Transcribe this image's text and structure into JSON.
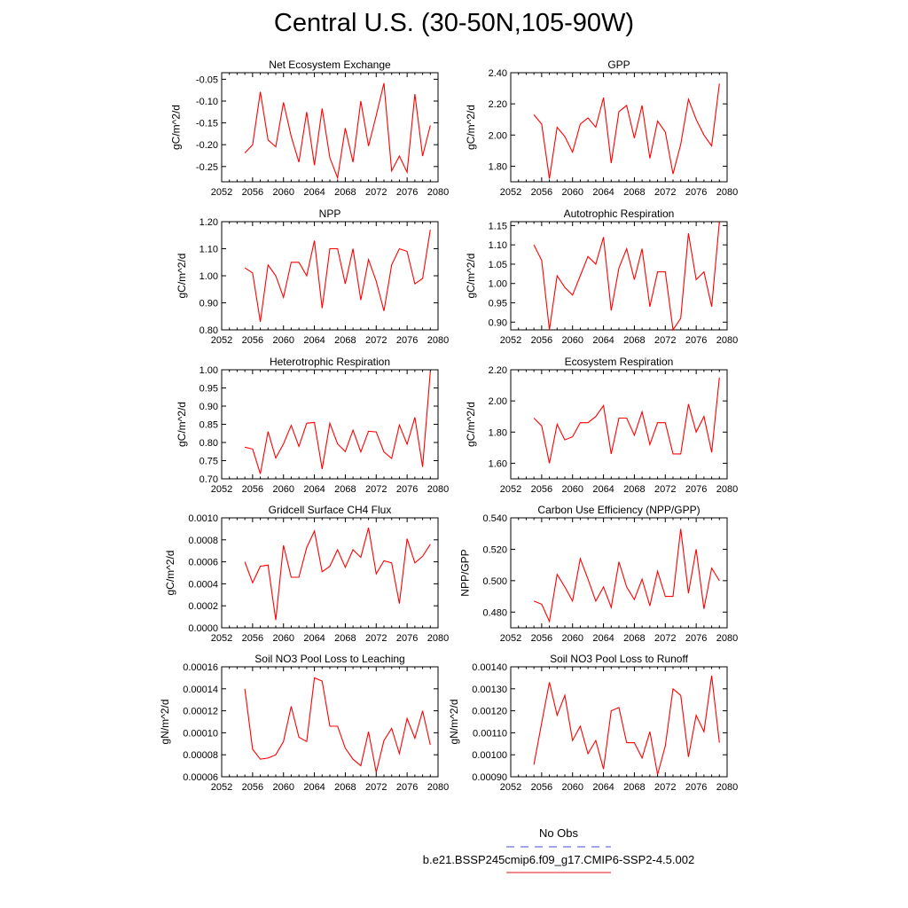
{
  "title": "Central U.S. (30-50N,105-90W)",
  "legend": [
    {
      "label": "No Obs",
      "color": "#4b4bd6",
      "style": "dashed"
    },
    {
      "label": "b.e21.BSSP245cmip6.f09_g17.CMIP6-SSP2-4.5.002",
      "color": "#e01818",
      "style": "solid"
    }
  ],
  "line_color": "#ff0000",
  "chart_data": [
    {
      "type": "line",
      "title": "Net Ecosystem Exchange",
      "ylabel": "gC/m^2/d",
      "xlabel": "",
      "xlim": [
        2052,
        2080
      ],
      "xticks": [
        "2052",
        "2056",
        "2060",
        "2064",
        "2068",
        "2072",
        "2076",
        "2080"
      ],
      "ylim": [
        -0.285,
        -0.035
      ],
      "yticks": [
        "-0.05",
        "-0.10",
        "-0.15",
        "-0.20",
        "-0.25"
      ],
      "x": [
        2055,
        2056,
        2057,
        2058,
        2059,
        2060,
        2061,
        2062,
        2063,
        2064,
        2065,
        2066,
        2067,
        2068,
        2069,
        2070,
        2071,
        2072,
        2073,
        2074,
        2075,
        2076,
        2077,
        2078,
        2079
      ],
      "values": [
        -0.219,
        -0.2,
        -0.079,
        -0.189,
        -0.205,
        -0.103,
        -0.181,
        -0.24,
        -0.125,
        -0.247,
        -0.117,
        -0.23,
        -0.276,
        -0.162,
        -0.24,
        -0.1,
        -0.203,
        -0.133,
        -0.059,
        -0.26,
        -0.226,
        -0.263,
        -0.084,
        -0.226,
        -0.156
      ]
    },
    {
      "type": "line",
      "title": "GPP",
      "ylabel": "gC/m^2/d",
      "xlabel": "",
      "xlim": [
        2052,
        2080
      ],
      "xticks": [
        "2052",
        "2056",
        "2060",
        "2064",
        "2068",
        "2072",
        "2076",
        "2080"
      ],
      "ylim": [
        1.7,
        2.4
      ],
      "yticks": [
        "2.40",
        "2.20",
        "2.00",
        "1.80"
      ],
      "x": [
        2055,
        2056,
        2057,
        2058,
        2059,
        2060,
        2061,
        2062,
        2063,
        2064,
        2065,
        2066,
        2067,
        2068,
        2069,
        2070,
        2071,
        2072,
        2073,
        2074,
        2075,
        2076,
        2077,
        2078,
        2079
      ],
      "values": [
        2.13,
        2.07,
        1.72,
        2.05,
        1.99,
        1.89,
        2.07,
        2.11,
        2.05,
        2.24,
        1.82,
        2.15,
        2.19,
        1.98,
        2.19,
        1.85,
        2.09,
        2.02,
        1.75,
        1.94,
        2.23,
        2.1,
        2.0,
        1.93,
        2.33
      ]
    },
    {
      "type": "line",
      "title": "NPP",
      "ylabel": "gC/m^2/d",
      "xlabel": "",
      "xlim": [
        2052,
        2080
      ],
      "xticks": [
        "2052",
        "2056",
        "2060",
        "2064",
        "2068",
        "2072",
        "2076",
        "2080"
      ],
      "ylim": [
        0.8,
        1.2
      ],
      "yticks": [
        "1.20",
        "1.10",
        "1.00",
        "0.90",
        "0.80"
      ],
      "x": [
        2055,
        2056,
        2057,
        2058,
        2059,
        2060,
        2061,
        2062,
        2063,
        2064,
        2065,
        2066,
        2067,
        2068,
        2069,
        2070,
        2071,
        2072,
        2073,
        2074,
        2075,
        2076,
        2077,
        2078,
        2079
      ],
      "values": [
        1.03,
        1.01,
        0.83,
        1.04,
        1.0,
        0.92,
        1.05,
        1.05,
        1.0,
        1.13,
        0.88,
        1.1,
        1.1,
        0.97,
        1.1,
        0.91,
        1.06,
        0.98,
        0.87,
        1.04,
        1.1,
        1.09,
        0.97,
        0.99,
        1.17
      ]
    },
    {
      "type": "line",
      "title": "Autotrophic Respiration",
      "ylabel": "gC/m^2/d",
      "xlabel": "",
      "xlim": [
        2052,
        2080
      ],
      "xticks": [
        "2052",
        "2056",
        "2060",
        "2064",
        "2068",
        "2072",
        "2076",
        "2080"
      ],
      "ylim": [
        0.88,
        1.16
      ],
      "yticks": [
        "1.15",
        "1.10",
        "1.05",
        "1.00",
        "0.95",
        "0.90"
      ],
      "x": [
        2055,
        2056,
        2057,
        2058,
        2059,
        2060,
        2061,
        2062,
        2063,
        2064,
        2065,
        2066,
        2067,
        2068,
        2069,
        2070,
        2071,
        2072,
        2073,
        2074,
        2075,
        2076,
        2077,
        2078,
        2079
      ],
      "values": [
        1.1,
        1.06,
        0.88,
        1.02,
        0.99,
        0.97,
        1.02,
        1.07,
        1.05,
        1.12,
        0.93,
        1.04,
        1.09,
        1.01,
        1.09,
        0.94,
        1.03,
        1.03,
        0.88,
        0.91,
        1.13,
        1.01,
        1.03,
        0.94,
        1.16
      ]
    },
    {
      "type": "line",
      "title": "Heterotrophic Respiration",
      "ylabel": "gC/m^2/d",
      "xlabel": "",
      "xlim": [
        2052,
        2080
      ],
      "xticks": [
        "2052",
        "2056",
        "2060",
        "2064",
        "2068",
        "2072",
        "2076",
        "2080"
      ],
      "ylim": [
        0.7,
        1.0
      ],
      "yticks": [
        "1.00",
        "0.95",
        "0.90",
        "0.85",
        "0.80",
        "0.75",
        "0.70"
      ],
      "x": [
        2055,
        2056,
        2057,
        2058,
        2059,
        2060,
        2061,
        2062,
        2063,
        2064,
        2065,
        2066,
        2067,
        2068,
        2069,
        2070,
        2071,
        2072,
        2073,
        2074,
        2075,
        2076,
        2077,
        2078,
        2079
      ],
      "values": [
        0.787,
        0.782,
        0.714,
        0.83,
        0.757,
        0.796,
        0.847,
        0.789,
        0.853,
        0.855,
        0.727,
        0.853,
        0.796,
        0.775,
        0.834,
        0.774,
        0.831,
        0.829,
        0.774,
        0.756,
        0.848,
        0.795,
        0.869,
        0.733,
        0.995
      ]
    },
    {
      "type": "line",
      "title": "Ecosystem Respiration",
      "ylabel": "gC/m^2/d",
      "xlabel": "",
      "xlim": [
        2052,
        2080
      ],
      "xticks": [
        "2052",
        "2056",
        "2060",
        "2064",
        "2068",
        "2072",
        "2076",
        "2080"
      ],
      "ylim": [
        1.5,
        2.2
      ],
      "yticks": [
        "2.20",
        "2.00",
        "1.80",
        "1.60"
      ],
      "x": [
        2055,
        2056,
        2057,
        2058,
        2059,
        2060,
        2061,
        2062,
        2063,
        2064,
        2065,
        2066,
        2067,
        2068,
        2069,
        2070,
        2071,
        2072,
        2073,
        2074,
        2075,
        2076,
        2077,
        2078,
        2079
      ],
      "values": [
        1.89,
        1.84,
        1.6,
        1.85,
        1.75,
        1.77,
        1.86,
        1.86,
        1.9,
        1.97,
        1.66,
        1.89,
        1.89,
        1.78,
        1.93,
        1.72,
        1.86,
        1.86,
        1.66,
        1.66,
        1.98,
        1.8,
        1.9,
        1.67,
        2.15
      ]
    },
    {
      "type": "line",
      "title": "Gridcell Surface CH4 Flux",
      "ylabel": "gC/m^2/d",
      "xlabel": "",
      "xlim": [
        2052,
        2080
      ],
      "xticks": [
        "2052",
        "2056",
        "2060",
        "2064",
        "2068",
        "2072",
        "2076",
        "2080"
      ],
      "ylim": [
        0.0,
        0.001
      ],
      "yticks": [
        "0.0010",
        "0.0008",
        "0.0006",
        "0.0004",
        "0.0002",
        "0.0000"
      ],
      "x": [
        2055,
        2056,
        2057,
        2058,
        2059,
        2060,
        2061,
        2062,
        2063,
        2064,
        2065,
        2066,
        2067,
        2068,
        2069,
        2070,
        2071,
        2072,
        2073,
        2074,
        2075,
        2076,
        2077,
        2078,
        2079
      ],
      "values": [
        0.0006,
        0.00041,
        0.00056,
        0.00057,
        7e-05,
        0.00075,
        0.00046,
        0.00046,
        0.00073,
        0.00088,
        0.00051,
        0.00056,
        0.00071,
        0.00055,
        0.00071,
        0.00064,
        0.00091,
        0.00049,
        0.00061,
        0.00059,
        0.00022,
        0.00081,
        0.00059,
        0.00065,
        0.00076
      ]
    },
    {
      "type": "line",
      "title": "Carbon Use Efficiency (NPP/GPP)",
      "ylabel": "NPP/GPP",
      "xlabel": "",
      "xlim": [
        2052,
        2080
      ],
      "xticks": [
        "2052",
        "2056",
        "2060",
        "2064",
        "2068",
        "2072",
        "2076",
        "2080"
      ],
      "ylim": [
        0.47,
        0.54
      ],
      "yticks": [
        "0.540",
        "0.520",
        "0.500",
        "0.480"
      ],
      "x": [
        2055,
        2056,
        2057,
        2058,
        2059,
        2060,
        2061,
        2062,
        2063,
        2064,
        2065,
        2066,
        2067,
        2068,
        2069,
        2070,
        2071,
        2072,
        2073,
        2074,
        2075,
        2076,
        2077,
        2078,
        2079
      ],
      "values": [
        0.487,
        0.485,
        0.474,
        0.504,
        0.496,
        0.487,
        0.514,
        0.501,
        0.487,
        0.496,
        0.483,
        0.512,
        0.496,
        0.488,
        0.501,
        0.484,
        0.506,
        0.49,
        0.49,
        0.533,
        0.492,
        0.52,
        0.482,
        0.508,
        0.5
      ]
    },
    {
      "type": "line",
      "title": "Soil NO3 Pool Loss to Leaching",
      "ylabel": "gN/m^2/d",
      "xlabel": "",
      "xlim": [
        2052,
        2080
      ],
      "xticks": [
        "2052",
        "2056",
        "2060",
        "2064",
        "2068",
        "2072",
        "2076",
        "2080"
      ],
      "ylim": [
        6e-05,
        0.00016
      ],
      "yticks": [
        "0.00016",
        "0.00014",
        "0.00012",
        "0.00010",
        "0.00008",
        "0.00006"
      ],
      "x": [
        2055,
        2056,
        2057,
        2058,
        2059,
        2060,
        2061,
        2062,
        2063,
        2064,
        2065,
        2066,
        2067,
        2068,
        2069,
        2070,
        2071,
        2072,
        2073,
        2074,
        2075,
        2076,
        2077,
        2078,
        2079
      ],
      "values": [
        0.00014,
        8.5e-05,
        7.6e-05,
        7.7e-05,
        8e-05,
        9.2e-05,
        0.000124,
        9.6e-05,
        9.2e-05,
        0.00015,
        0.000147,
        0.000106,
        0.000106,
        8.6e-05,
        7.6e-05,
        7e-05,
        0.000101,
        6.4e-05,
        9.3e-05,
        0.000104,
        8.1e-05,
        0.000113,
        9.5e-05,
        0.00012,
        8.9e-05
      ]
    },
    {
      "type": "line",
      "title": "Soil NO3 Pool Loss to Runoff",
      "ylabel": "gN/m^2/d",
      "xlabel": "",
      "xlim": [
        2052,
        2080
      ],
      "xticks": [
        "2052",
        "2056",
        "2060",
        "2064",
        "2068",
        "2072",
        "2076",
        "2080"
      ],
      "ylim": [
        0.0009,
        0.0014
      ],
      "yticks": [
        "0.00140",
        "0.00130",
        "0.00120",
        "0.00110",
        "0.00100",
        "0.00090"
      ],
      "x": [
        2055,
        2056,
        2057,
        2058,
        2059,
        2060,
        2061,
        2062,
        2063,
        2064,
        2065,
        2066,
        2067,
        2068,
        2069,
        2070,
        2071,
        2072,
        2073,
        2074,
        2075,
        2076,
        2077,
        2078,
        2079
      ],
      "values": [
        0.000955,
        0.001145,
        0.00133,
        0.00118,
        0.00127,
        0.001065,
        0.00113,
        0.001005,
        0.001065,
        0.000935,
        0.0012,
        0.001215,
        0.001055,
        0.001055,
        0.000985,
        0.001105,
        0.00091,
        0.00104,
        0.0013,
        0.00127,
        0.00099,
        0.00118,
        0.001105,
        0.00136,
        0.001055
      ]
    }
  ]
}
